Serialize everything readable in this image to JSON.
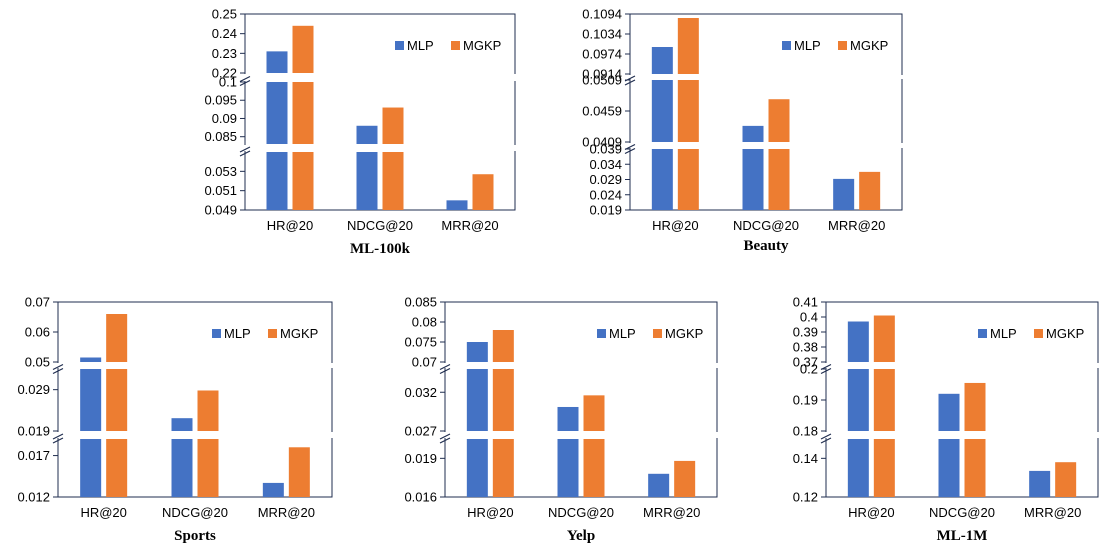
{
  "colors": {
    "MLP": "#4472C4",
    "MGKP": "#ED7D31"
  },
  "chart_data": [
    {
      "type": "bar",
      "title": "ML-100k",
      "xlabel": "",
      "ylabel": "",
      "legend_position": "top-right",
      "categories": [
        "HR@20",
        "NDCG@20",
        "MRR@20"
      ],
      "series": [
        {
          "name": "MLP",
          "values": [
            0.231,
            0.088,
            0.05
          ]
        },
        {
          "name": "MGKP",
          "values": [
            0.244,
            0.093,
            0.0527
          ]
        }
      ],
      "axis_segments": [
        {
          "range": [
            0.049,
            0.055
          ],
          "ticks": [
            "0.049",
            "0.051",
            "0.053"
          ]
        },
        {
          "range": [
            0.083,
            0.1
          ],
          "ticks": [
            "0.085",
            "0.09",
            "0.095",
            "0.1"
          ]
        },
        {
          "range": [
            0.22,
            0.25
          ],
          "ticks": [
            "0.22",
            "0.23",
            "0.24",
            "0.25"
          ]
        }
      ]
    },
    {
      "type": "bar",
      "title": "Beauty",
      "xlabel": "",
      "ylabel": "",
      "legend_position": "top-right",
      "categories": [
        "HR@20",
        "NDCG@20",
        "MRR@20"
      ],
      "series": [
        {
          "name": "MLP",
          "values": [
            0.0995,
            0.0435,
            0.0292
          ]
        },
        {
          "name": "MGKP",
          "values": [
            0.1082,
            0.0478,
            0.0315
          ]
        }
      ],
      "axis_segments": [
        {
          "range": [
            0.019,
            0.039
          ],
          "ticks": [
            "0.019",
            "0.024",
            "0.029",
            "0.034",
            "0.039"
          ]
        },
        {
          "range": [
            0.0409,
            0.0509
          ],
          "ticks": [
            "0.0409",
            "0.0459",
            "0.0509"
          ]
        },
        {
          "range": [
            0.0914,
            0.1094
          ],
          "ticks": [
            "0.0914",
            "0.0974",
            "0.1034",
            "0.1094"
          ]
        }
      ]
    },
    {
      "type": "bar",
      "title": "Sports",
      "xlabel": "",
      "ylabel": "",
      "legend_position": "top-right",
      "categories": [
        "HR@20",
        "NDCG@20",
        "MRR@20"
      ],
      "series": [
        {
          "name": "MLP",
          "values": [
            0.0515,
            0.0221,
            0.0137
          ]
        },
        {
          "name": "MGKP",
          "values": [
            0.066,
            0.0288,
            0.018
          ]
        }
      ],
      "axis_segments": [
        {
          "range": [
            0.012,
            0.019
          ],
          "ticks": [
            "0.012",
            "0.017"
          ]
        },
        {
          "range": [
            0.019,
            0.034
          ],
          "ticks": [
            "0.019",
            "0.029"
          ]
        },
        {
          "range": [
            0.05,
            0.07
          ],
          "ticks": [
            "0.05",
            "0.06",
            "0.07"
          ]
        }
      ]
    },
    {
      "type": "bar",
      "title": "Yelp",
      "xlabel": "",
      "ylabel": "",
      "legend_position": "top-right",
      "categories": [
        "HR@20",
        "NDCG@20",
        "MRR@20"
      ],
      "series": [
        {
          "name": "MLP",
          "values": [
            0.075,
            0.0301,
            0.0178
          ]
        },
        {
          "name": "MGKP",
          "values": [
            0.078,
            0.0316,
            0.0188
          ]
        }
      ],
      "axis_segments": [
        {
          "range": [
            0.016,
            0.0205
          ],
          "ticks": [
            "0.016",
            "0.019"
          ]
        },
        {
          "range": [
            0.027,
            0.035
          ],
          "ticks": [
            "0.027",
            "0.032"
          ]
        },
        {
          "range": [
            0.07,
            0.085
          ],
          "ticks": [
            "0.07",
            "0.075",
            "0.08",
            "0.085"
          ]
        }
      ]
    },
    {
      "type": "bar",
      "title": "ML-1M",
      "xlabel": "",
      "ylabel": "",
      "legend_position": "top-right",
      "categories": [
        "HR@20",
        "NDCG@20",
        "MRR@20"
      ],
      "series": [
        {
          "name": "MLP",
          "values": [
            0.397,
            0.192,
            0.1335
          ]
        },
        {
          "name": "MGKP",
          "values": [
            0.401,
            0.1955,
            0.138
          ]
        }
      ],
      "axis_segments": [
        {
          "range": [
            0.12,
            0.15
          ],
          "ticks": [
            "0.12",
            "0.14"
          ]
        },
        {
          "range": [
            0.18,
            0.2
          ],
          "ticks": [
            "0.18",
            "0.19",
            "0.2"
          ]
        },
        {
          "range": [
            0.37,
            0.41
          ],
          "ticks": [
            "0.37",
            "0.38",
            "0.39",
            "0.4",
            "0.41"
          ]
        }
      ]
    }
  ]
}
